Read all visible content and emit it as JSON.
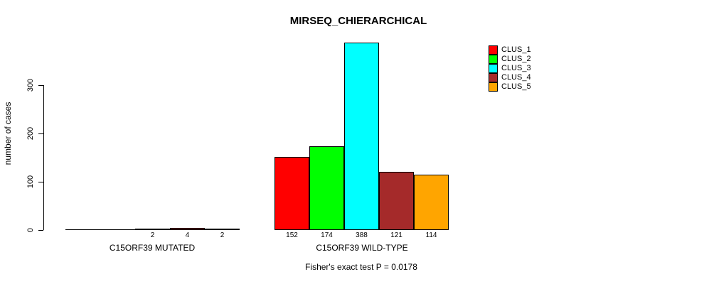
{
  "title": "MIRSEQ_CHIERARCHICAL",
  "chart_data": {
    "type": "bar",
    "title": "MIRSEQ_CHIERARCHICAL",
    "ylabel": "number of cases",
    "ylim": [
      0,
      300
    ],
    "yticks": [
      0,
      100,
      200,
      300
    ],
    "grid": false,
    "legend_position": "right-outside",
    "groups": [
      "C15ORF39 MUTATED",
      "C15ORF39 WILD-TYPE"
    ],
    "series": [
      {
        "name": "CLUS_1",
        "color": "#FF0000",
        "values": [
          0,
          152
        ]
      },
      {
        "name": "CLUS_2",
        "color": "#00FF00",
        "values": [
          0,
          174
        ]
      },
      {
        "name": "CLUS_3",
        "color": "#00FFFF",
        "values": [
          2,
          388
        ]
      },
      {
        "name": "CLUS_4",
        "color": "#A52A2A",
        "values": [
          4,
          121
        ]
      },
      {
        "name": "CLUS_5",
        "color": "#FFA500",
        "values": [
          2,
          114
        ]
      }
    ],
    "bar_labels": [
      [
        "",
        "",
        "2",
        "4",
        "2"
      ],
      [
        "152",
        "174",
        "388",
        "121",
        "114"
      ]
    ],
    "annotation": "Fisher's exact test P = 0.0178",
    "colors": {
      "axis": "#000000",
      "text": "#000000",
      "background": "#FFFFFF"
    }
  }
}
